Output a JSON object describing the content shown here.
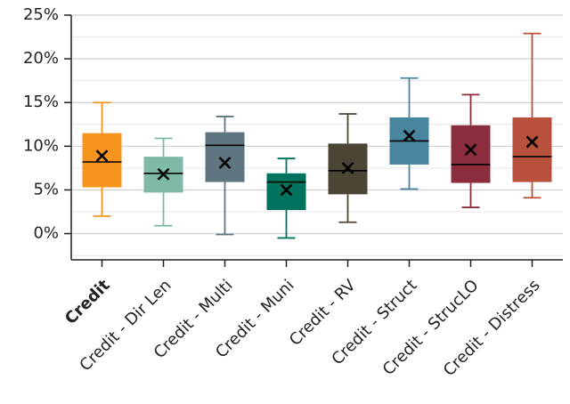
{
  "chart_data": {
    "type": "box",
    "categories": [
      "Credit",
      "Credit - Dir Len",
      "Credit - Multi",
      "Credit - Muni",
      "Credit - RV",
      "Credit - Struct",
      "Credit - StrucLO",
      "Credit - Distress"
    ],
    "bold_category": 0,
    "colors": [
      "#f7941d",
      "#7fb9a9",
      "#5f7680",
      "#00735f",
      "#4a4535",
      "#4a85a0",
      "#8c2d3e",
      "#b8513b"
    ],
    "whisker_high": [
      15.0,
      10.9,
      13.4,
      8.6,
      13.7,
      17.8,
      15.9,
      22.9
    ],
    "q3": [
      11.5,
      8.8,
      11.6,
      6.9,
      10.3,
      13.3,
      12.4,
      13.3
    ],
    "median": [
      8.2,
      6.9,
      10.1,
      5.9,
      7.2,
      10.6,
      7.9,
      8.8
    ],
    "q1": [
      5.3,
      4.7,
      5.9,
      2.7,
      4.5,
      7.9,
      5.8,
      5.9
    ],
    "whisker_low": [
      2.0,
      0.9,
      -0.1,
      -0.5,
      1.3,
      5.1,
      3.0,
      4.1
    ],
    "mean": [
      8.9,
      6.8,
      8.1,
      5.0,
      7.5,
      11.2,
      9.6,
      10.5
    ],
    "ylim": [
      -3,
      25
    ],
    "yticks": [
      {
        "value": 0,
        "label": "0%"
      },
      {
        "value": 5,
        "label": "5%"
      },
      {
        "value": 10,
        "label": "10%"
      },
      {
        "value": 15,
        "label": "15%"
      },
      {
        "value": 20,
        "label": "20%"
      },
      {
        "value": 25,
        "label": "25%"
      }
    ],
    "minor_grid": [
      -2.5,
      2.5,
      7.5,
      12.5,
      17.5,
      22.5
    ],
    "grid": true
  }
}
